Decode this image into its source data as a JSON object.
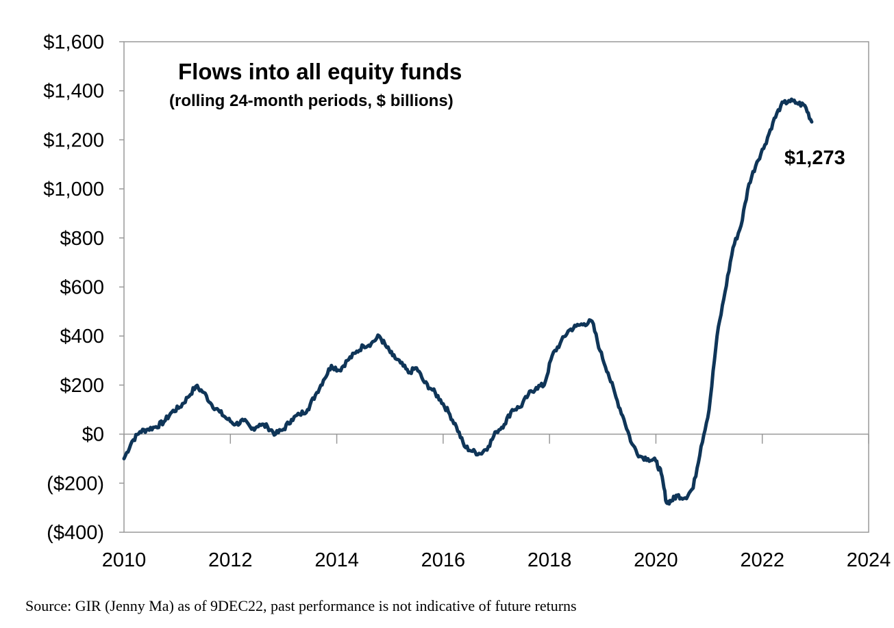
{
  "source_note": "Source: GIR (Jenny Ma) as of 9DEC22, past performance is not indicative of future returns",
  "chart_data": {
    "type": "line",
    "title": "Flows into all equity funds",
    "subtitle": "(rolling 24-month periods, $ billions)",
    "xlabel": "",
    "ylabel": "",
    "xlim": [
      2010,
      2024
    ],
    "ylim": [
      -400,
      1600
    ],
    "grid": false,
    "y_ticks": [
      1600,
      1400,
      1200,
      1000,
      800,
      600,
      400,
      200,
      0,
      -200,
      -400
    ],
    "y_tick_labels": [
      "$1,600",
      "$1,400",
      "$1,200",
      "$1,000",
      "$800",
      "$600",
      "$400",
      "$200",
      "$0",
      "($200)",
      "($400)"
    ],
    "x_ticks": [
      2010,
      2012,
      2014,
      2016,
      2018,
      2020,
      2022,
      2024
    ],
    "x_tick_labels": [
      "2010",
      "2012",
      "2014",
      "2016",
      "2018",
      "2020",
      "2022",
      "2024"
    ],
    "line_color": "#0f3558",
    "end_label": "$1,273",
    "series": [
      {
        "name": "",
        "x": [
          2010.0,
          2010.15,
          2010.3,
          2010.45,
          2010.6,
          2010.75,
          2010.9,
          2011.05,
          2011.2,
          2011.35,
          2011.5,
          2011.65,
          2011.8,
          2011.95,
          2012.1,
          2012.25,
          2012.4,
          2012.55,
          2012.7,
          2012.85,
          2013.0,
          2013.15,
          2013.3,
          2013.45,
          2013.6,
          2013.75,
          2013.9,
          2014.05,
          2014.2,
          2014.35,
          2014.5,
          2014.65,
          2014.8,
          2014.92,
          2015.05,
          2015.2,
          2015.35,
          2015.5,
          2015.65,
          2015.8,
          2015.95,
          2016.1,
          2016.25,
          2016.4,
          2016.55,
          2016.7,
          2016.85,
          2017.0,
          2017.15,
          2017.3,
          2017.45,
          2017.6,
          2017.75,
          2017.9,
          2018.05,
          2018.2,
          2018.35,
          2018.5,
          2018.65,
          2018.8,
          2018.95,
          2019.1,
          2019.25,
          2019.4,
          2019.55,
          2019.7,
          2019.85,
          2020.0,
          2020.1,
          2020.2,
          2020.3,
          2020.4,
          2020.55,
          2020.7,
          2020.85,
          2021.0,
          2021.15,
          2021.3,
          2021.45,
          2021.6,
          2021.75,
          2021.9,
          2022.05,
          2022.2,
          2022.35,
          2022.5,
          2022.65,
          2022.8,
          2022.93
        ],
        "values": [
          -100,
          -30,
          10,
          20,
          30,
          50,
          90,
          110,
          150,
          195,
          170,
          120,
          90,
          60,
          40,
          55,
          20,
          40,
          30,
          0,
          20,
          60,
          80,
          100,
          160,
          220,
          280,
          260,
          300,
          330,
          360,
          370,
          400,
          360,
          320,
          290,
          250,
          270,
          210,
          180,
          140,
          90,
          30,
          -50,
          -70,
          -80,
          -50,
          10,
          40,
          100,
          110,
          160,
          190,
          200,
          320,
          370,
          420,
          440,
          450,
          460,
          340,
          250,
          150,
          60,
          -40,
          -90,
          -100,
          -110,
          -160,
          -280,
          -270,
          -250,
          -260,
          -220,
          -50,
          100,
          400,
          580,
          760,
          850,
          1020,
          1110,
          1180,
          1270,
          1340,
          1360,
          1350,
          1340,
          1273
        ]
      }
    ]
  }
}
